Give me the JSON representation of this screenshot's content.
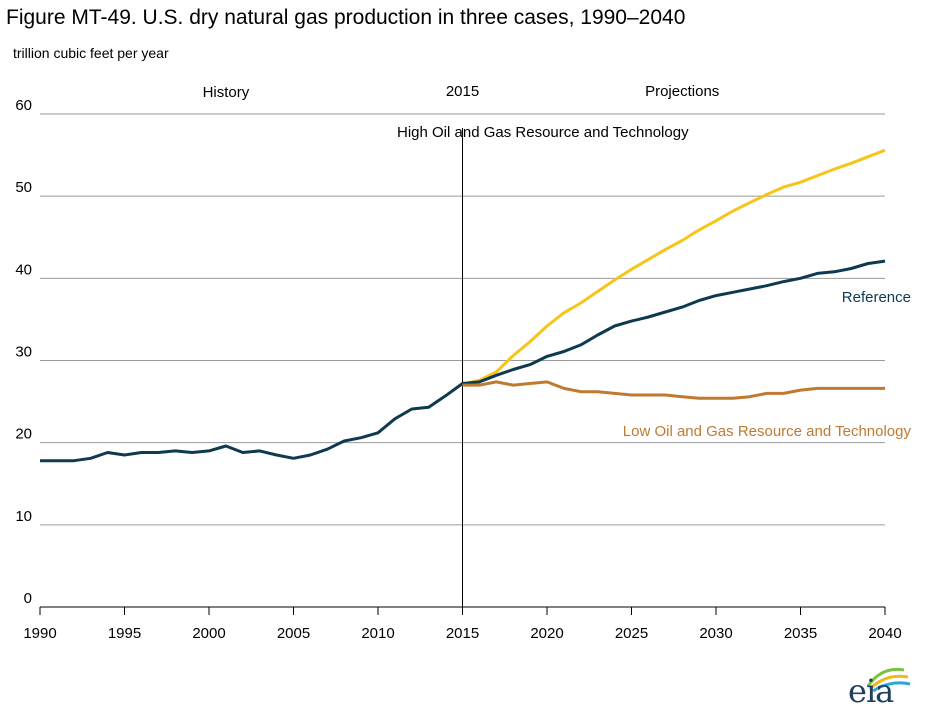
{
  "title": "Figure MT-49. U.S. dry natural gas production in three cases, 1990–2040",
  "ylabel": "trillion cubic feet per year",
  "logo_text": "eia",
  "chart_data": {
    "type": "line",
    "xlim": [
      1990,
      2040
    ],
    "ylim": [
      0,
      60
    ],
    "x_ticks": [
      1990,
      1995,
      2000,
      2005,
      2010,
      2015,
      2020,
      2025,
      2030,
      2035,
      2040
    ],
    "y_ticks": [
      0,
      10,
      20,
      30,
      40,
      50,
      60
    ],
    "grid": "horizontal",
    "divider_year": 2015,
    "region_labels": {
      "history": "History",
      "divider": "2015",
      "projections": "Projections"
    },
    "series": [
      {
        "name": "High Oil and Gas Resource and Technology",
        "color": "#f5c518",
        "x": [
          2015,
          2016,
          2017,
          2018,
          2019,
          2020,
          2021,
          2022,
          2023,
          2024,
          2025,
          2026,
          2027,
          2028,
          2029,
          2030,
          2031,
          2032,
          2033,
          2034,
          2035,
          2036,
          2037,
          2038,
          2039,
          2040
        ],
        "values": [
          27.1,
          27.6,
          28.6,
          30.6,
          32.3,
          34.2,
          35.8,
          37.0,
          38.4,
          39.8,
          41.1,
          42.3,
          43.5,
          44.6,
          45.9,
          47.0,
          48.2,
          49.2,
          50.2,
          51.1,
          51.7,
          52.5,
          53.3,
          54.0,
          54.8,
          55.6
        ]
      },
      {
        "name": "Reference",
        "color": "#0e3a50",
        "x": [
          1990,
          1991,
          1992,
          1993,
          1994,
          1995,
          1996,
          1997,
          1998,
          1999,
          2000,
          2001,
          2002,
          2003,
          2004,
          2005,
          2006,
          2007,
          2008,
          2009,
          2010,
          2011,
          2012,
          2013,
          2014,
          2015,
          2016,
          2017,
          2018,
          2019,
          2020,
          2021,
          2022,
          2023,
          2024,
          2025,
          2026,
          2027,
          2028,
          2029,
          2030,
          2031,
          2032,
          2033,
          2034,
          2035,
          2036,
          2037,
          2038,
          2039,
          2040
        ],
        "values": [
          17.8,
          17.8,
          17.8,
          18.1,
          18.8,
          18.5,
          18.8,
          18.8,
          19.0,
          18.8,
          19.0,
          19.6,
          18.8,
          19.0,
          18.5,
          18.1,
          18.5,
          19.2,
          20.2,
          20.6,
          21.2,
          22.9,
          24.1,
          24.3,
          25.7,
          27.2,
          27.4,
          28.2,
          28.9,
          29.5,
          30.5,
          31.1,
          31.9,
          33.1,
          34.2,
          34.8,
          35.3,
          35.9,
          36.5,
          37.3,
          37.9,
          38.3,
          38.7,
          39.1,
          39.6,
          40.0,
          40.6,
          40.8,
          41.2,
          41.8,
          42.1
        ]
      },
      {
        "name": "Low Oil and Gas Resource and Technology",
        "color": "#bf7a30",
        "x": [
          2015,
          2016,
          2017,
          2018,
          2019,
          2020,
          2021,
          2022,
          2023,
          2024,
          2025,
          2026,
          2027,
          2028,
          2029,
          2030,
          2031,
          2032,
          2033,
          2034,
          2035,
          2036,
          2037,
          2038,
          2039,
          2040
        ],
        "values": [
          27.0,
          27.0,
          27.4,
          27.0,
          27.2,
          27.4,
          26.6,
          26.2,
          26.2,
          26.0,
          25.8,
          25.8,
          25.8,
          25.6,
          25.4,
          25.4,
          25.4,
          25.6,
          26.0,
          26.0,
          26.4,
          26.6,
          26.6,
          26.6,
          26.6,
          26.6
        ]
      }
    ]
  }
}
